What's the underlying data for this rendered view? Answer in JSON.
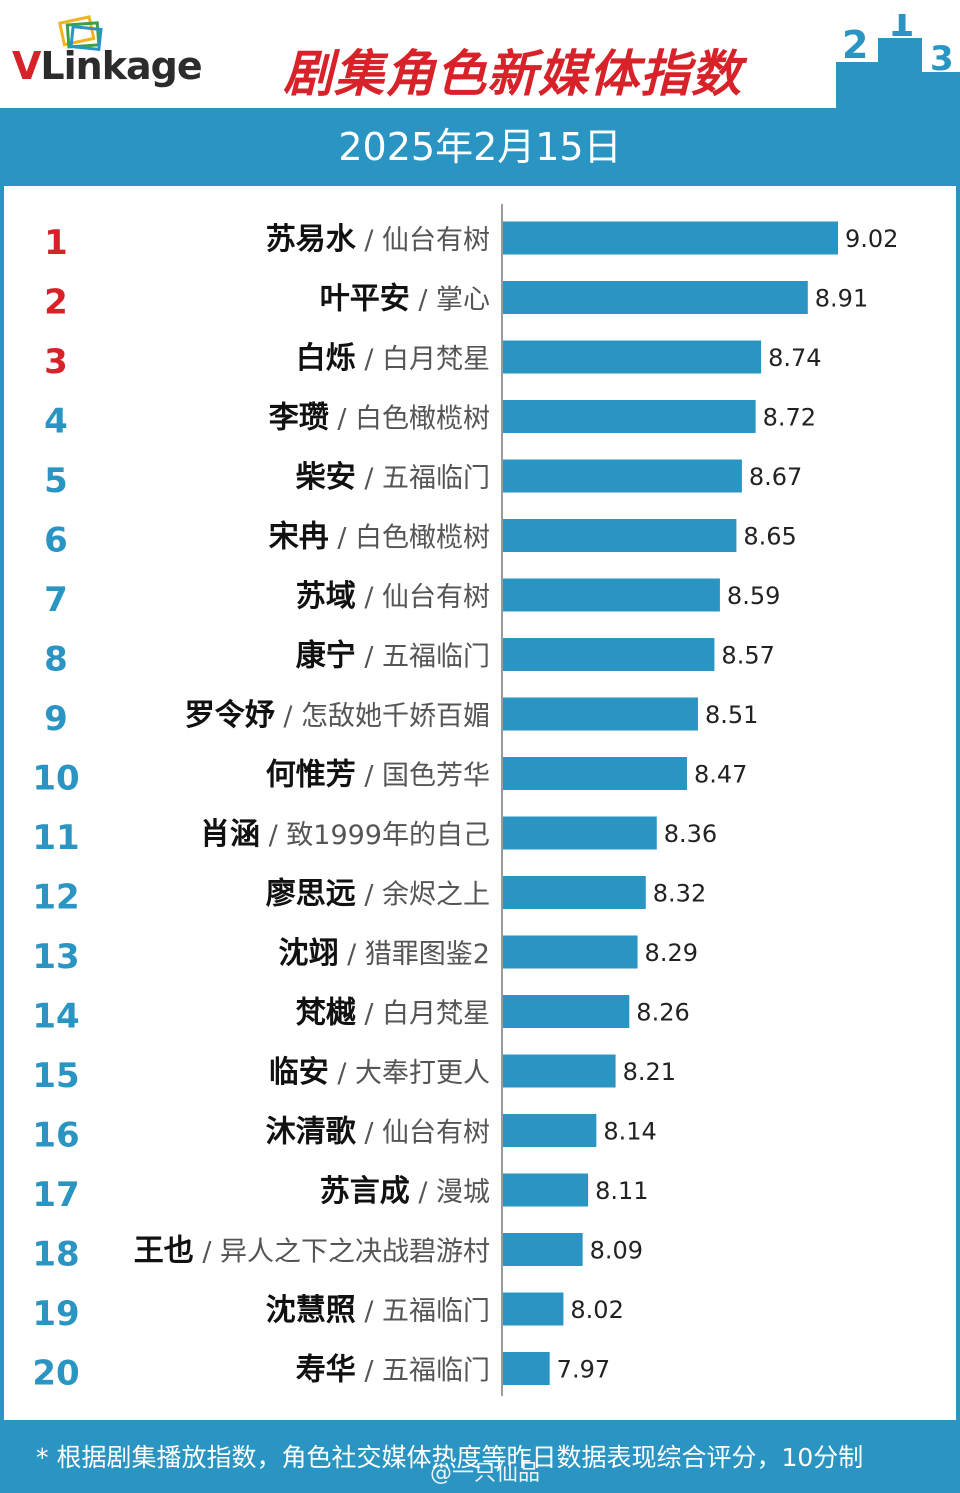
{
  "brand": {
    "logo_v": "V",
    "logo_rest": "Linkage"
  },
  "header": {
    "title": "剧集角色新媒体指数",
    "date": "2025年2月15日"
  },
  "footer": {
    "note": "* 根据剧集播放指数，角色社交媒体热度等昨日数据表现综合评分，10分制",
    "watermark": "@一只仙品"
  },
  "colors": {
    "bar": "#2a95c2",
    "top3_rank": "#d7222a",
    "rank": "#2a95c2",
    "title": "#d7222a",
    "band": "#2a95c2"
  },
  "chart_data": {
    "type": "bar",
    "orientation": "horizontal",
    "title": "剧集角色新媒体指数",
    "subtitle": "2025年2月15日",
    "xlim": [
      7.8,
      9.1
    ],
    "grid": false,
    "legend": "none",
    "ranks": [
      "1",
      "2",
      "3",
      "4",
      "5",
      "6",
      "7",
      "8",
      "9",
      "10",
      "11",
      "12",
      "13",
      "14",
      "15",
      "16",
      "17",
      "18",
      "19",
      "20"
    ],
    "categories": [
      {
        "name": "苏易水",
        "show": "仙台有树"
      },
      {
        "name": "叶平安",
        "show": "掌心"
      },
      {
        "name": "白烁",
        "show": "白月梵星"
      },
      {
        "name": "李瓒",
        "show": "白色橄榄树"
      },
      {
        "name": "柴安",
        "show": "五福临门"
      },
      {
        "name": "宋冉",
        "show": "白色橄榄树"
      },
      {
        "name": "苏域",
        "show": "仙台有树"
      },
      {
        "name": "康宁",
        "show": "五福临门"
      },
      {
        "name": "罗令妤",
        "show": "怎敌她千娇百媚"
      },
      {
        "name": "何惟芳",
        "show": "国色芳华"
      },
      {
        "name": "肖涵",
        "show": "致1999年的自己"
      },
      {
        "name": "廖思远",
        "show": "余烬之上"
      },
      {
        "name": "沈翊",
        "show": "猎罪图鉴2"
      },
      {
        "name": "梵樾",
        "show": "白月梵星"
      },
      {
        "name": "临安",
        "show": "大奉打更人"
      },
      {
        "name": "沐清歌",
        "show": "仙台有树"
      },
      {
        "name": "苏言成",
        "show": "漫城"
      },
      {
        "name": "王也",
        "show": "异人之下之决战碧游村"
      },
      {
        "name": "沈慧照",
        "show": "五福临门"
      },
      {
        "name": "寿华",
        "show": "五福临门"
      }
    ],
    "values": [
      9.02,
      8.91,
      8.74,
      8.72,
      8.67,
      8.65,
      8.59,
      8.57,
      8.51,
      8.47,
      8.36,
      8.32,
      8.29,
      8.26,
      8.21,
      8.14,
      8.11,
      8.09,
      8.02,
      7.97
    ],
    "value_labels": [
      "9.02",
      "8.91",
      "8.74",
      "8.72",
      "8.67",
      "8.65",
      "8.59",
      "8.57",
      "8.51",
      "8.47",
      "8.36",
      "8.32",
      "8.29",
      "8.26",
      "8.21",
      "8.14",
      "8.11",
      "8.09",
      "8.02",
      "7.97"
    ],
    "separator": " / "
  }
}
